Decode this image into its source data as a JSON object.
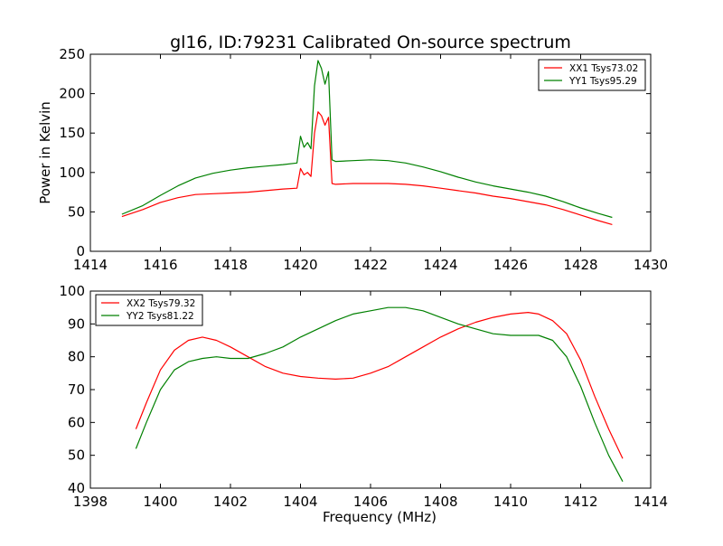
{
  "figure": {
    "title": "gl16, ID:79231 Calibrated On-source spectrum"
  },
  "chart_data": [
    {
      "type": "line",
      "title": "gl16, ID:79231 Calibrated On-source spectrum",
      "xlabel": "",
      "ylabel": "Power in Kelvin",
      "xlim": [
        1414,
        1430
      ],
      "ylim": [
        0,
        250
      ],
      "xticks": [
        1414,
        1416,
        1418,
        1420,
        1422,
        1424,
        1426,
        1428,
        1430
      ],
      "yticks": [
        0,
        50,
        100,
        150,
        200,
        250
      ],
      "grid": false,
      "legend_position": "top-right",
      "series": [
        {
          "name": "XX1 Tsys73.02",
          "color": "#ff0000",
          "x": [
            1414.9,
            1415.5,
            1416.0,
            1416.5,
            1417.0,
            1417.5,
            1418.0,
            1418.5,
            1419.0,
            1419.5,
            1419.9,
            1420.0,
            1420.1,
            1420.2,
            1420.3,
            1420.4,
            1420.5,
            1420.6,
            1420.7,
            1420.8,
            1420.9,
            1421.0,
            1421.5,
            1422.0,
            1422.5,
            1423.0,
            1423.5,
            1424.0,
            1424.5,
            1425.0,
            1425.5,
            1426.0,
            1426.5,
            1427.0,
            1427.5,
            1428.0,
            1428.5,
            1428.9
          ],
          "y": [
            44,
            53,
            62,
            68,
            72,
            73,
            74,
            75,
            77,
            79,
            80,
            105,
            97,
            100,
            95,
            150,
            177,
            172,
            160,
            170,
            86,
            85,
            86,
            86,
            86,
            85,
            83,
            80,
            77,
            74,
            70,
            67,
            63,
            59,
            53,
            46,
            39,
            34
          ]
        },
        {
          "name": "YY1 Tsys95.29",
          "color": "#008000",
          "x": [
            1414.9,
            1415.5,
            1416.0,
            1416.5,
            1417.0,
            1417.5,
            1418.0,
            1418.5,
            1419.0,
            1419.5,
            1419.9,
            1420.0,
            1420.1,
            1420.2,
            1420.3,
            1420.4,
            1420.5,
            1420.6,
            1420.7,
            1420.8,
            1420.9,
            1421.0,
            1421.5,
            1422.0,
            1422.5,
            1423.0,
            1423.5,
            1424.0,
            1424.5,
            1425.0,
            1425.5,
            1426.0,
            1426.5,
            1427.0,
            1427.5,
            1428.0,
            1428.5,
            1428.9
          ],
          "y": [
            47,
            58,
            71,
            83,
            93,
            99,
            103,
            106,
            108,
            110,
            112,
            146,
            132,
            138,
            130,
            210,
            242,
            232,
            212,
            228,
            116,
            114,
            115,
            116,
            115,
            112,
            107,
            101,
            94,
            88,
            83,
            79,
            75,
            70,
            63,
            55,
            48,
            43
          ]
        }
      ]
    },
    {
      "type": "line",
      "title": "",
      "xlabel": "Frequency (MHz)",
      "ylabel": "",
      "xlim": [
        1398,
        1414
      ],
      "ylim": [
        40,
        100
      ],
      "xticks": [
        1398,
        1400,
        1402,
        1404,
        1406,
        1408,
        1410,
        1412,
        1414
      ],
      "yticks": [
        40,
        50,
        60,
        70,
        80,
        90,
        100
      ],
      "grid": false,
      "legend_position": "top-left",
      "series": [
        {
          "name": "XX2 Tsys79.32",
          "color": "#ff0000",
          "x": [
            1399.3,
            1399.6,
            1400.0,
            1400.4,
            1400.8,
            1401.2,
            1401.6,
            1402.0,
            1402.5,
            1403.0,
            1403.5,
            1404.0,
            1404.5,
            1405.0,
            1405.5,
            1406.0,
            1406.5,
            1407.0,
            1407.5,
            1408.0,
            1408.5,
            1409.0,
            1409.5,
            1410.0,
            1410.5,
            1410.8,
            1411.2,
            1411.6,
            1412.0,
            1412.4,
            1412.8,
            1413.2
          ],
          "y": [
            58,
            66,
            76,
            82,
            85,
            86,
            85,
            83,
            80,
            77,
            75,
            74,
            73.5,
            73.2,
            73.5,
            75,
            77,
            80,
            83,
            86,
            88.5,
            90.5,
            92,
            93,
            93.5,
            93,
            91,
            87,
            79,
            68,
            58,
            49
          ]
        },
        {
          "name": "YY2 Tsys81.22",
          "color": "#008000",
          "x": [
            1399.3,
            1399.6,
            1400.0,
            1400.4,
            1400.8,
            1401.2,
            1401.6,
            1402.0,
            1402.5,
            1403.0,
            1403.5,
            1404.0,
            1404.5,
            1405.0,
            1405.5,
            1406.0,
            1406.5,
            1407.0,
            1407.5,
            1408.0,
            1408.5,
            1409.0,
            1409.5,
            1410.0,
            1410.5,
            1410.8,
            1411.2,
            1411.6,
            1412.0,
            1412.4,
            1412.8,
            1413.2
          ],
          "y": [
            52,
            60,
            70,
            76,
            78.5,
            79.5,
            80,
            79.5,
            79.5,
            81,
            83,
            86,
            88.5,
            91,
            93,
            94,
            95,
            95,
            94,
            92,
            90,
            88.5,
            87,
            86.5,
            86.5,
            86.5,
            85,
            80,
            71,
            60,
            50,
            42
          ]
        }
      ]
    }
  ]
}
